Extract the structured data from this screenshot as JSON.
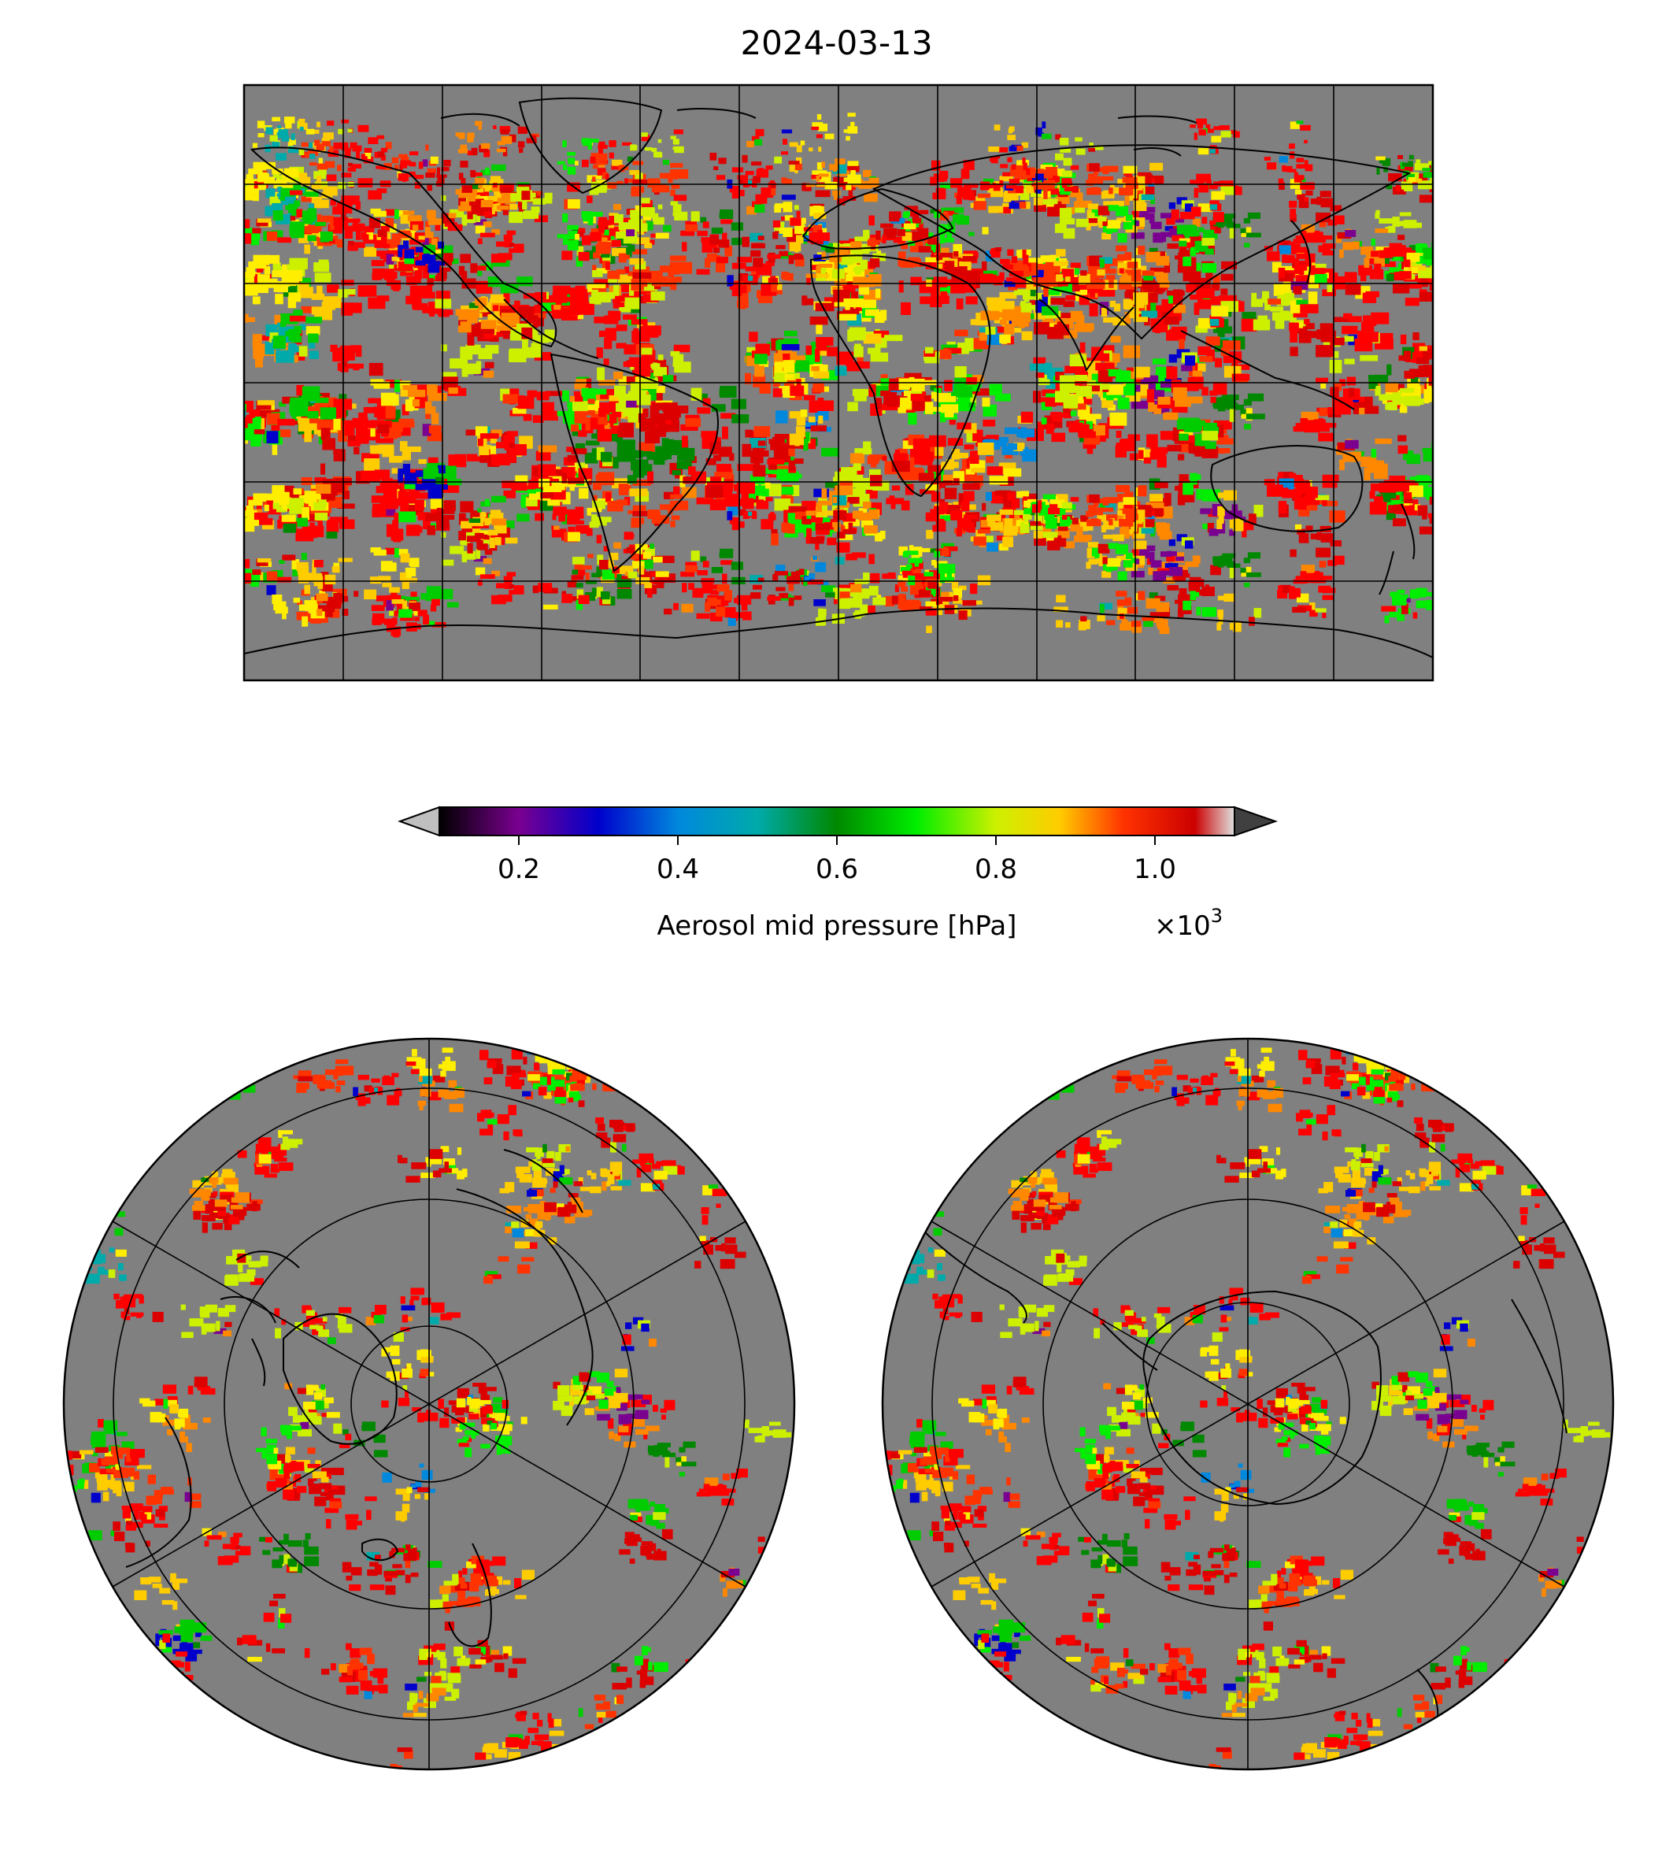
{
  "title": "2024-03-13",
  "colorbar": {
    "label": "Aerosol mid pressure [hPa]",
    "multiplier_text": "×10",
    "multiplier_exponent": "3",
    "ticks": [
      "0.2",
      "0.4",
      "0.6",
      "0.8",
      "1.0"
    ],
    "tick_values": [
      0.2,
      0.4,
      0.6,
      0.8,
      1.0
    ],
    "range": [
      0.1,
      1.1
    ],
    "extend": "both",
    "colormap": "nipy_spectral",
    "under_color": "#bfbfbf",
    "over_color": "#404040"
  },
  "panels": {
    "global_map": {
      "projection": "plate-carree",
      "gridlines": true,
      "coastlines": true
    },
    "north_polar": {
      "projection": "north-polar-stereographic",
      "gridlines": true,
      "coastlines": true
    },
    "south_polar": {
      "projection": "south-polar-stereographic",
      "gridlines": true,
      "coastlines": true
    }
  },
  "colors": {
    "no_data": "#808080",
    "line": "#000000"
  }
}
